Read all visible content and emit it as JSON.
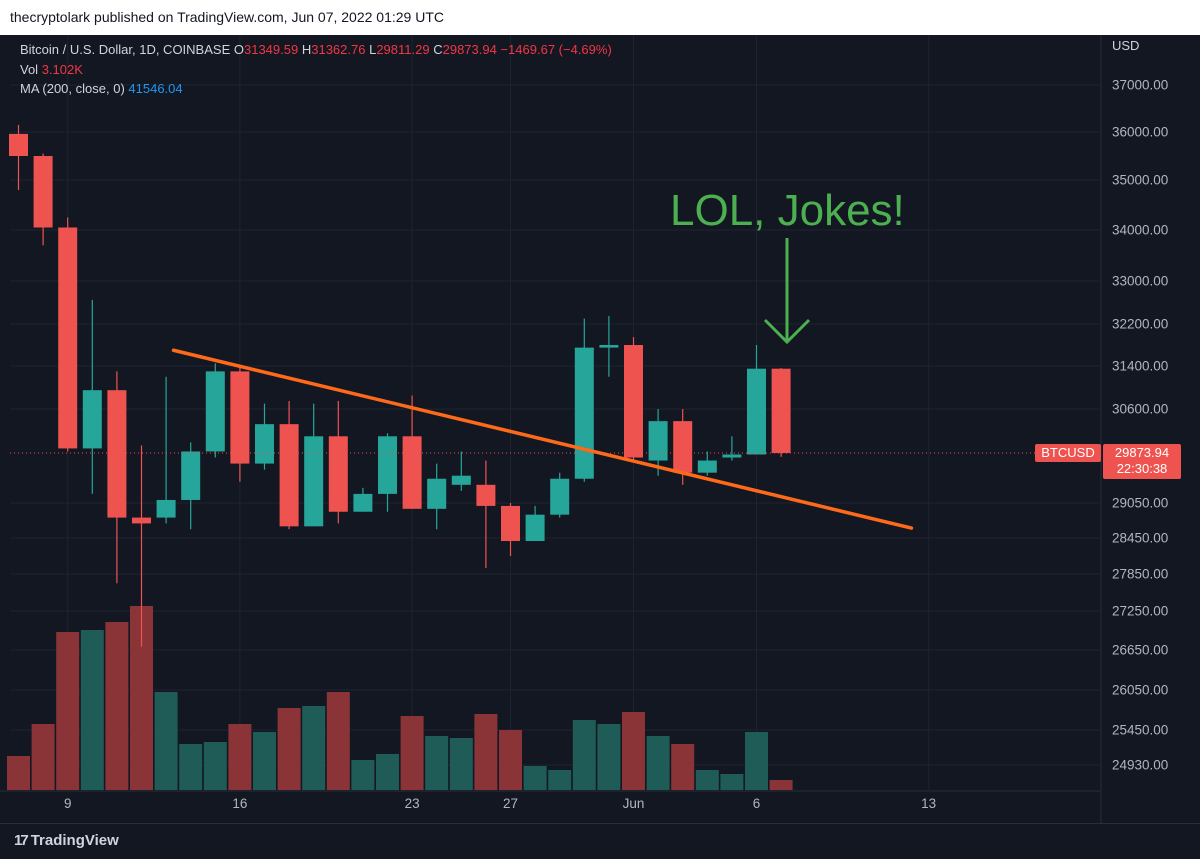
{
  "header": {
    "text": "thecryptolark published on TradingView.com, Jun 07, 2022 01:29 UTC"
  },
  "legend": {
    "symbol": "Bitcoin / U.S. Dollar, 1D, COINBASE",
    "o_label": "O",
    "o_value": "31349.59",
    "h_label": "H",
    "h_value": "31362.76",
    "l_label": "L",
    "l_value": "29811.29",
    "c_label": "C",
    "c_value": "29873.94",
    "change": "−1469.67 (−4.69%)",
    "vol_label": "Vol",
    "vol_value": "3.102K",
    "ma_label": "MA (200, close, 0)",
    "ma_value": "41546.04"
  },
  "axis": {
    "currency": "USD"
  },
  "badge": {
    "symbol": "BTCUSD",
    "price": "29873.94",
    "countdown": "22:30:38"
  },
  "annotation": {
    "text": "LOL, Jokes!"
  },
  "footer": {
    "brand": "TradingView",
    "logo_mark": "17"
  },
  "colors": {
    "up": "#26a69a",
    "down": "#ef5350",
    "trendline": "#ff6a1a",
    "annotation": "#4caf50",
    "vol_up": "#1f5c58",
    "vol_down": "#8b3437"
  },
  "chart_data": {
    "type": "candlestick",
    "ylim": [
      24500,
      37600
    ],
    "y_ticks": [
      37000,
      36000,
      35000,
      34000,
      33000,
      32200,
      31400,
      30600,
      29050,
      28450,
      27850,
      27250,
      26650,
      26050,
      25450,
      24930
    ],
    "y_tick_labels": [
      "37000.00",
      "36000.00",
      "35000.00",
      "34000.00",
      "33000.00",
      "32200.00",
      "31400.00",
      "30600.00",
      "29050.00",
      "28450.00",
      "27850.00",
      "27250.00",
      "26650.00",
      "26050.00",
      "25450.00",
      "24930.00"
    ],
    "x_labels": [
      {
        "label": "9",
        "index": 2
      },
      {
        "label": "16",
        "index": 9
      },
      {
        "label": "23",
        "index": 16
      },
      {
        "label": "27",
        "index": 20
      },
      {
        "label": "Jun",
        "index": 25
      },
      {
        "label": "6",
        "index": 30
      },
      {
        "label": "13",
        "index": 37
      }
    ],
    "candles": [
      {
        "o": 35960,
        "h": 36150,
        "l": 34800,
        "c": 35500
      },
      {
        "o": 35500,
        "h": 35550,
        "l": 33700,
        "c": 34050
      },
      {
        "o": 34050,
        "h": 34250,
        "l": 29900,
        "c": 29950
      },
      {
        "o": 29950,
        "h": 32650,
        "l": 29200,
        "c": 30950
      },
      {
        "o": 30950,
        "h": 31300,
        "l": 27700,
        "c": 28800
      },
      {
        "o": 28800,
        "h": 30000,
        "l": 26700,
        "c": 28700
      },
      {
        "o": 28800,
        "h": 31200,
        "l": 28700,
        "c": 29100
      },
      {
        "o": 29100,
        "h": 30050,
        "l": 28600,
        "c": 29900
      },
      {
        "o": 29900,
        "h": 31450,
        "l": 29800,
        "c": 31300
      },
      {
        "o": 31300,
        "h": 31400,
        "l": 29400,
        "c": 29700
      },
      {
        "o": 29700,
        "h": 30700,
        "l": 29600,
        "c": 30350
      },
      {
        "o": 30350,
        "h": 30750,
        "l": 28600,
        "c": 28650
      },
      {
        "o": 28650,
        "h": 30700,
        "l": 28650,
        "c": 30150
      },
      {
        "o": 30150,
        "h": 30750,
        "l": 28700,
        "c": 28900
      },
      {
        "o": 28900,
        "h": 29300,
        "l": 28900,
        "c": 29200
      },
      {
        "o": 29200,
        "h": 30200,
        "l": 28900,
        "c": 30150
      },
      {
        "o": 30150,
        "h": 30850,
        "l": 28950,
        "c": 28950
      },
      {
        "o": 28950,
        "h": 29700,
        "l": 28600,
        "c": 29450
      },
      {
        "o": 29350,
        "h": 29900,
        "l": 29250,
        "c": 29500
      },
      {
        "o": 29350,
        "h": 29750,
        "l": 27950,
        "c": 29000
      },
      {
        "o": 29000,
        "h": 29050,
        "l": 28150,
        "c": 28400
      },
      {
        "o": 28400,
        "h": 29000,
        "l": 28400,
        "c": 28850
      },
      {
        "o": 28850,
        "h": 29550,
        "l": 28800,
        "c": 29450
      },
      {
        "o": 29450,
        "h": 32300,
        "l": 29400,
        "c": 31750
      },
      {
        "o": 31750,
        "h": 32350,
        "l": 31200,
        "c": 31800
      },
      {
        "o": 31800,
        "h": 31950,
        "l": 29750,
        "c": 29800
      },
      {
        "o": 29750,
        "h": 30600,
        "l": 29500,
        "c": 30400
      },
      {
        "o": 30400,
        "h": 30600,
        "l": 29350,
        "c": 29550
      },
      {
        "o": 29550,
        "h": 29900,
        "l": 29500,
        "c": 29750
      },
      {
        "o": 29800,
        "h": 30150,
        "l": 29750,
        "c": 29850
      },
      {
        "o": 29850,
        "h": 31800,
        "l": 29850,
        "c": 31350
      },
      {
        "o": 31350,
        "h": 31363,
        "l": 29811,
        "c": 29874
      }
    ],
    "volume_ylim": [
      0,
      1.0
    ],
    "volumes": [
      0.17,
      0.33,
      0.79,
      0.8,
      0.84,
      0.92,
      0.49,
      0.23,
      0.24,
      0.33,
      0.29,
      0.41,
      0.42,
      0.49,
      0.15,
      0.18,
      0.37,
      0.27,
      0.26,
      0.38,
      0.3,
      0.12,
      0.1,
      0.35,
      0.33,
      0.39,
      0.27,
      0.23,
      0.1,
      0.08,
      0.29,
      0.05
    ],
    "trendline": {
      "from": {
        "index": 6.3,
        "price": 31700
      },
      "to": {
        "index": 36.3,
        "price": 28620
      }
    },
    "current_price": 29873.94
  }
}
